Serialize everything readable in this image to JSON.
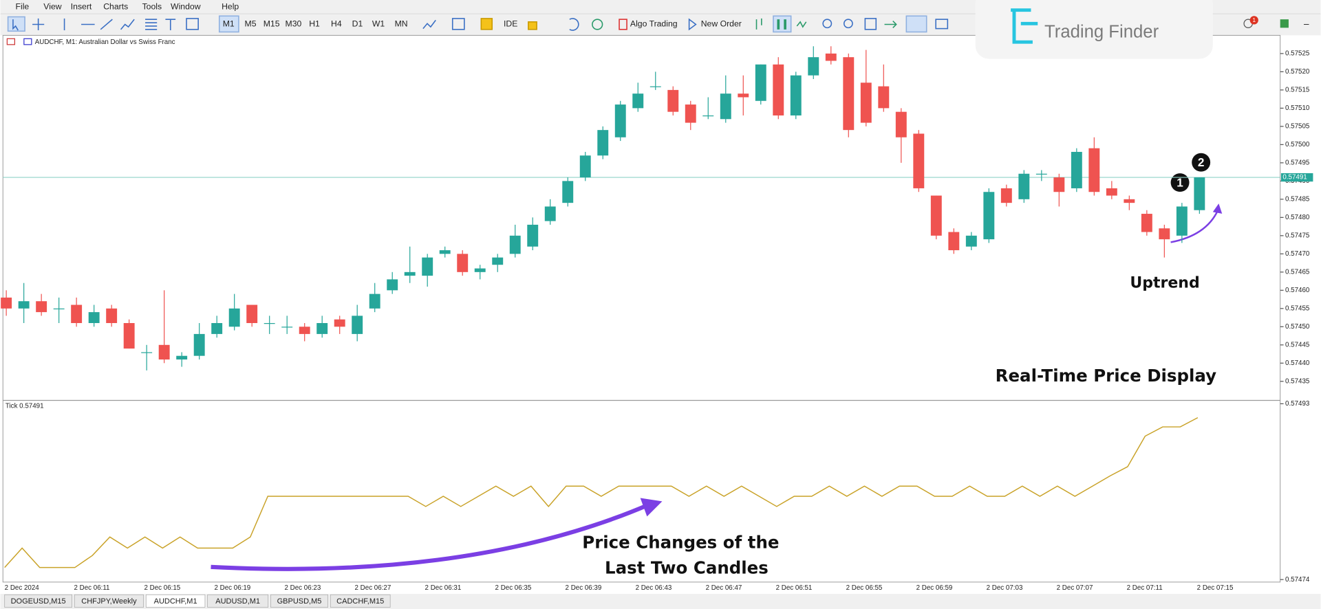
{
  "menu": [
    "File",
    "View",
    "Insert",
    "Charts",
    "Tools",
    "Window",
    "Help"
  ],
  "toolbar": {
    "timeframes": [
      "M1",
      "M5",
      "M15",
      "M30",
      "H1",
      "H4",
      "D1",
      "W1",
      "MN"
    ],
    "ide": "IDE",
    "algo_trading": "Algo Trading",
    "new_order": "New Order",
    "badge": "1"
  },
  "logo": "Trading Finder",
  "chart": {
    "header": "AUDCHF, M1:  Australian Dollar vs Swiss Franc",
    "ylim": [
      0.5743,
      0.5753
    ],
    "price_ticks": [
      {
        "value": 0.57525,
        "label": "0.57525"
      },
      {
        "value": 0.5752,
        "label": "0.57520"
      },
      {
        "value": 0.57515,
        "label": "0.57515"
      },
      {
        "value": 0.5751,
        "label": "0.57510"
      },
      {
        "value": 0.57505,
        "label": "0.57505"
      },
      {
        "value": 0.575,
        "label": "0.57500"
      },
      {
        "value": 0.57495,
        "label": "0.57495"
      },
      {
        "value": 0.5749,
        "label": "0.57490"
      },
      {
        "value": 0.57485,
        "label": "0.57485"
      },
      {
        "value": 0.5748,
        "label": "0.57480"
      },
      {
        "value": 0.57475,
        "label": "0.57475"
      },
      {
        "value": 0.5747,
        "label": "0.57470"
      },
      {
        "value": 0.57465,
        "label": "0.57465"
      },
      {
        "value": 0.5746,
        "label": "0.57460"
      },
      {
        "value": 0.57455,
        "label": "0.57455"
      },
      {
        "value": 0.5745,
        "label": "0.57450"
      },
      {
        "value": 0.57445,
        "label": "0.57445"
      },
      {
        "value": 0.5744,
        "label": "0.57440"
      },
      {
        "value": 0.57435,
        "label": "0.57435"
      }
    ],
    "current_price": 0.57491,
    "up_color": "#26a69a",
    "down_color": "#ef5350",
    "candles": {
      "open": [
        0.57458,
        0.57455,
        0.57457,
        0.57455,
        0.57456,
        0.57451,
        0.57455,
        0.57451,
        0.57443,
        0.57445,
        0.57441,
        0.57442,
        0.57448,
        0.5745,
        0.57456,
        0.57451,
        0.5745,
        0.5745,
        0.57448,
        0.57452,
        0.57448,
        0.57455,
        0.5746,
        0.57464,
        0.57464,
        0.5747,
        0.5747,
        0.57465,
        0.57467,
        0.5747,
        0.57472,
        0.57479,
        0.57484,
        0.57491,
        0.57497,
        0.57502,
        0.5751,
        0.57516,
        0.57515,
        0.57511,
        0.57508,
        0.57507,
        0.57514,
        0.57512,
        0.57522,
        0.57508,
        0.57519,
        0.57525,
        0.57524,
        0.57517,
        0.57516,
        0.57509,
        0.57503,
        0.57486,
        0.57476,
        0.57472,
        0.57474,
        0.57488,
        0.57485,
        0.57492,
        0.57491,
        0.57488,
        0.57499,
        0.57488,
        0.57485,
        0.57481,
        0.57477,
        0.57475,
        0.57482
      ],
      "high": [
        0.5746,
        0.57462,
        0.57459,
        0.57458,
        0.57458,
        0.57456,
        0.57456,
        0.57452,
        0.57445,
        0.5746,
        0.57443,
        0.57451,
        0.57453,
        0.57459,
        0.57456,
        0.57453,
        0.57453,
        0.57451,
        0.57453,
        0.57453,
        0.57456,
        0.57462,
        0.57465,
        0.57472,
        0.5747,
        0.57472,
        0.57471,
        0.57467,
        0.5747,
        0.57478,
        0.5748,
        0.57485,
        0.57491,
        0.57498,
        0.57505,
        0.57512,
        0.57517,
        0.5752,
        0.57516,
        0.57512,
        0.57513,
        0.57519,
        0.57519,
        0.57522,
        0.57524,
        0.5752,
        0.57527,
        0.57527,
        0.57525,
        0.57526,
        0.57522,
        0.5751,
        0.57504,
        0.57486,
        0.57477,
        0.57476,
        0.57488,
        0.57489,
        0.57493,
        0.57493,
        0.57492,
        0.57499,
        0.57502,
        0.5749,
        0.57486,
        0.57482,
        0.57478,
        0.57484,
        0.57491
      ],
      "low": [
        0.57453,
        0.57451,
        0.57453,
        0.57451,
        0.5745,
        0.5745,
        0.5745,
        0.57444,
        0.57438,
        0.5744,
        0.57439,
        0.57441,
        0.57447,
        0.57449,
        0.5745,
        0.57448,
        0.57448,
        0.57446,
        0.57447,
        0.57448,
        0.57446,
        0.57454,
        0.57459,
        0.57462,
        0.57461,
        0.57469,
        0.57464,
        0.57463,
        0.57465,
        0.57469,
        0.57471,
        0.57478,
        0.57483,
        0.5749,
        0.57496,
        0.57501,
        0.57509,
        0.57515,
        0.57508,
        0.57504,
        0.57507,
        0.57506,
        0.57508,
        0.57511,
        0.57507,
        0.57507,
        0.57518,
        0.57522,
        0.57502,
        0.57505,
        0.57509,
        0.57495,
        0.57487,
        0.57474,
        0.5747,
        0.57471,
        0.57473,
        0.57483,
        0.57484,
        0.5749,
        0.57483,
        0.57487,
        0.57486,
        0.57485,
        0.57482,
        0.57475,
        0.57469,
        0.57473,
        0.57481
      ],
      "close": [
        0.57455,
        0.57457,
        0.57454,
        0.57455,
        0.57451,
        0.57454,
        0.57451,
        0.57444,
        0.57443,
        0.57441,
        0.57442,
        0.57448,
        0.57451,
        0.57455,
        0.57451,
        0.57451,
        0.5745,
        0.57448,
        0.57451,
        0.5745,
        0.57453,
        0.57459,
        0.57463,
        0.57465,
        0.57469,
        0.57471,
        0.57465,
        0.57466,
        0.57469,
        0.57475,
        0.57478,
        0.57483,
        0.5749,
        0.57497,
        0.57504,
        0.57511,
        0.57514,
        0.57516,
        0.57509,
        0.57506,
        0.57508,
        0.57514,
        0.57513,
        0.57522,
        0.57508,
        0.57519,
        0.57524,
        0.57523,
        0.57504,
        0.57506,
        0.5751,
        0.57502,
        0.57488,
        0.57475,
        0.57471,
        0.57475,
        0.57487,
        0.57484,
        0.57492,
        0.57492,
        0.57487,
        0.57498,
        0.57487,
        0.57486,
        0.57484,
        0.57476,
        0.57474,
        0.57483,
        0.57491
      ]
    },
    "time_labels": [
      "2 Dec 2024",
      "2 Dec 06:11",
      "2 Dec 06:15",
      "2 Dec 06:19",
      "2 Dec 06:23",
      "2 Dec 06:27",
      "2 Dec 06:31",
      "2 Dec 06:35",
      "2 Dec 06:39",
      "2 Dec 06:43",
      "2 Dec 06:47",
      "2 Dec 06:51",
      "2 Dec 06:55",
      "2 Dec 06:59",
      "2 Dec 07:03",
      "2 Dec 07:07",
      "2 Dec 07:11",
      "2 Dec 07:15"
    ]
  },
  "indicator": {
    "title": "Tick 0.57491",
    "color": "#c9a227",
    "ylim": [
      0.57474,
      0.57493
    ],
    "ticks": [
      0.57493,
      0.57474
    ],
    "values": [
      0.574753,
      0.574774,
      0.574753,
      0.574753,
      0.574753,
      0.574766,
      0.574786,
      0.574774,
      0.574786,
      0.574774,
      0.574786,
      0.574774,
      0.574774,
      0.574774,
      0.574786,
      0.57483,
      0.57483,
      0.57483,
      0.57483,
      0.57483,
      0.57483,
      0.57483,
      0.57483,
      0.57483,
      0.574819,
      0.57483,
      0.574819,
      0.57483,
      0.574841,
      0.57483,
      0.574841,
      0.574819,
      0.574841,
      0.574841,
      0.57483,
      0.574841,
      0.574841,
      0.574841,
      0.574841,
      0.57483,
      0.574841,
      0.57483,
      0.574841,
      0.57483,
      0.574819,
      0.57483,
      0.57483,
      0.574841,
      0.57483,
      0.574841,
      0.57483,
      0.574841,
      0.574841,
      0.57483,
      0.57483,
      0.574841,
      0.57483,
      0.57483,
      0.574841,
      0.57483,
      0.574841,
      0.57483,
      0.574841,
      0.574852,
      0.574862,
      0.574895,
      0.574905,
      0.574905,
      0.574915
    ]
  },
  "annotations": {
    "realtime": "Real-Time Price Display",
    "uptrend": "Uptrend",
    "price_changes": [
      "Price Changes of the",
      "Last Two Candles"
    ],
    "markers": [
      "1",
      "2"
    ]
  },
  "tabs": [
    "DOGEUSD,M15",
    "CHFJPY,Weekly",
    "AUDCHF,M1",
    "AUDUSD,M1",
    "GBPUSD,M5",
    "CADCHF,M15"
  ]
}
